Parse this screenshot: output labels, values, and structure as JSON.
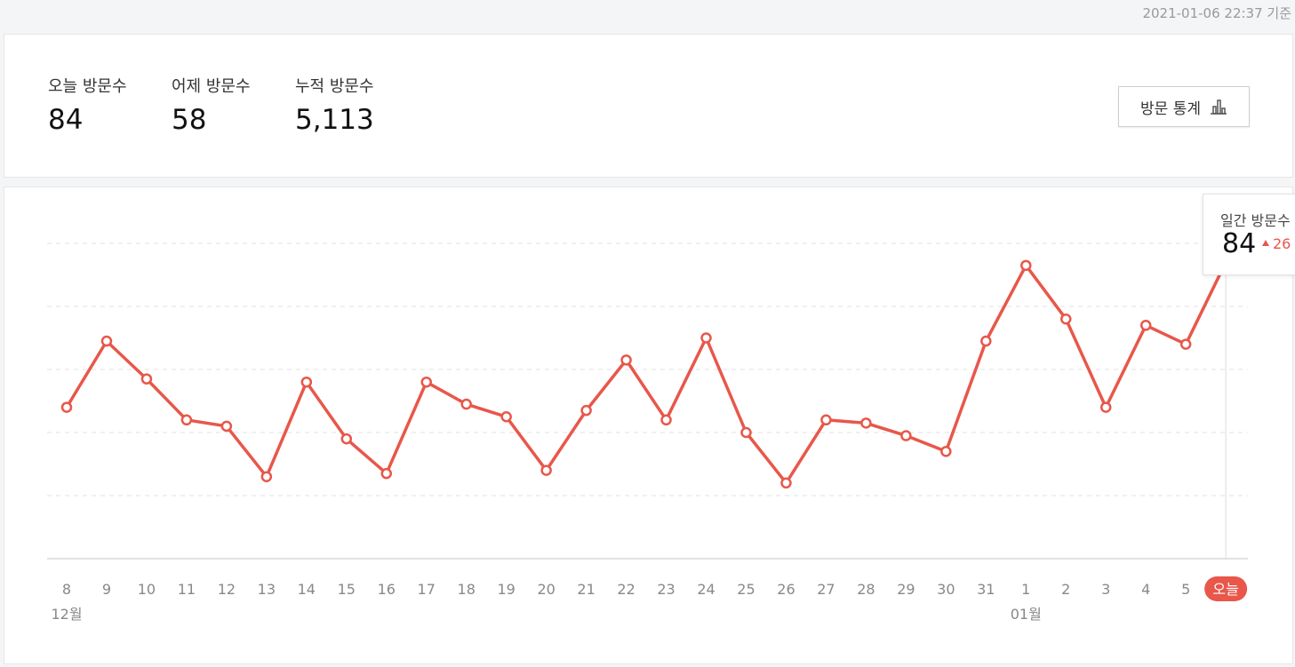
{
  "header": {
    "timestamp": "2021-01-06 22:37 기준"
  },
  "summary": {
    "today": {
      "label": "오늘 방문수",
      "value": "84"
    },
    "yesterday": {
      "label": "어제 방문수",
      "value": "58"
    },
    "total": {
      "label": "누적 방문수",
      "value": "5,113"
    },
    "stats_button": {
      "label": "방문 통계",
      "icon": "bar-chart-icon"
    }
  },
  "tooltip": {
    "label": "일간 방문수",
    "value": "84",
    "delta": "26"
  },
  "colors": {
    "line": "#e8574a",
    "grid": "#e0e0e0",
    "axis_text": "#888"
  },
  "chart_data": {
    "type": "line",
    "categories": [
      "8",
      "9",
      "10",
      "11",
      "12",
      "13",
      "14",
      "15",
      "16",
      "17",
      "18",
      "19",
      "20",
      "21",
      "22",
      "23",
      "24",
      "25",
      "26",
      "27",
      "28",
      "29",
      "30",
      "31",
      "1",
      "2",
      "3",
      "4",
      "5",
      "오늘"
    ],
    "values": [
      38,
      59,
      47,
      34,
      32,
      16,
      46,
      28,
      17,
      46,
      39,
      35,
      18,
      37,
      53,
      34,
      60,
      30,
      14,
      34,
      33,
      29,
      24,
      59,
      83,
      66,
      38,
      64,
      58,
      84
    ],
    "month_labels": [
      {
        "index": 0,
        "label": "12월"
      },
      {
        "index": 24,
        "label": "01월"
      }
    ],
    "highlight_index": 29,
    "ylim": [
      -10,
      90
    ],
    "grid": true
  }
}
